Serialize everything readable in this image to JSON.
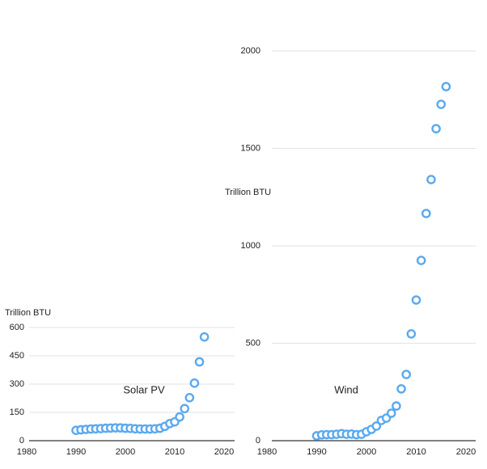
{
  "chart_data": [
    {
      "type": "scatter",
      "ylabel": "Trillion BTU",
      "label": "Solar PV",
      "color": "#5aa9ef",
      "grid": true,
      "x": [
        1990,
        1991,
        1992,
        1993,
        1994,
        1995,
        1996,
        1997,
        1998,
        1999,
        2000,
        2001,
        2002,
        2003,
        2004,
        2005,
        2006,
        2007,
        2008,
        2009,
        2010,
        2011,
        2012,
        2013,
        2014,
        2015,
        2016
      ],
      "values": [
        55,
        58,
        60,
        62,
        63,
        64,
        66,
        67,
        68,
        68,
        66,
        65,
        63,
        62,
        62,
        62,
        63,
        66,
        76,
        91,
        100,
        126,
        170,
        228,
        305,
        418,
        550
      ],
      "xlim": [
        1980,
        2020
      ],
      "xticks": [
        1980,
        1990,
        2000,
        2010,
        2020
      ],
      "ylim": [
        0,
        600
      ],
      "yticks": [
        0,
        150,
        300,
        450,
        600
      ]
    },
    {
      "type": "scatter",
      "ylabel": "Trillion BTU",
      "label": "Wind",
      "color": "#5aa9ef",
      "grid": true,
      "x": [
        1990,
        1991,
        1992,
        1993,
        1994,
        1995,
        1996,
        1997,
        1998,
        1999,
        2000,
        2001,
        2002,
        2003,
        2004,
        2005,
        2006,
        2007,
        2008,
        2009,
        2010,
        2011,
        2012,
        2013,
        2014,
        2015,
        2016
      ],
      "values": [
        25,
        30,
        31,
        31,
        33,
        36,
        33,
        34,
        31,
        33,
        46,
        58,
        75,
        104,
        116,
        141,
        178,
        266,
        340,
        548,
        722,
        925,
        1166,
        1340,
        1601,
        1726,
        1817
      ],
      "xlim": [
        1980,
        2020
      ],
      "xticks": [
        1980,
        1990,
        2000,
        2010,
        2020
      ],
      "ylim": [
        0,
        2000
      ],
      "yticks": [
        0,
        500,
        1000,
        1500,
        2000
      ]
    }
  ]
}
